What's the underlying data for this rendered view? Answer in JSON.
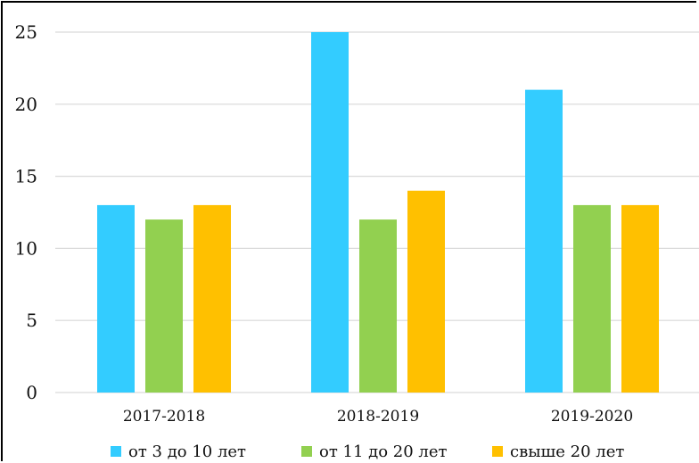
{
  "chart_data": {
    "type": "bar",
    "categories": [
      "2017-2018",
      "2018-2019",
      "2019-2020"
    ],
    "series": [
      {
        "name": "от 3 до 10 лет",
        "values": [
          13,
          25,
          21
        ],
        "color": "#33ccff"
      },
      {
        "name": "от 11 до 20 лет",
        "values": [
          12,
          12,
          13
        ],
        "color": "#92d050"
      },
      {
        "name": "свыше 20 лет",
        "values": [
          13,
          14,
          13
        ],
        "color": "#ffc000"
      }
    ],
    "yticks": [
      0,
      5,
      10,
      15,
      20,
      25
    ],
    "ylim": [
      0,
      25
    ],
    "grid": true,
    "legend_position": "bottom",
    "gridline_color": "#d9d9d9"
  }
}
